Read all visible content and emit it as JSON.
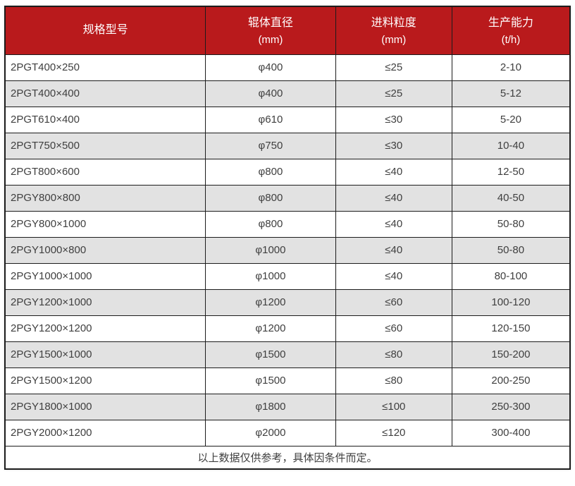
{
  "table": {
    "columns": [
      {
        "label": "规格型号",
        "unit": ""
      },
      {
        "label": "辊体直径",
        "unit": "(mm)"
      },
      {
        "label": "进料粒度",
        "unit": "(mm)"
      },
      {
        "label": "生产能力",
        "unit": "(t/h)"
      }
    ],
    "rows": [
      [
        "2PGT400×250",
        "φ400",
        "≤25",
        "2-10"
      ],
      [
        "2PGT400×400",
        "φ400",
        "≤25",
        "5-12"
      ],
      [
        "2PGT610×400",
        "φ610",
        "≤30",
        "5-20"
      ],
      [
        "2PGT750×500",
        "φ750",
        "≤30",
        "10-40"
      ],
      [
        "2PGT800×600",
        "φ800",
        "≤40",
        "12-50"
      ],
      [
        "2PGY800×800",
        "φ800",
        "≤40",
        "40-50"
      ],
      [
        "2PGY800×1000",
        "φ800",
        "≤40",
        "50-80"
      ],
      [
        "2PGY1000×800",
        "φ1000",
        "≤40",
        "50-80"
      ],
      [
        "2PGY1000×1000",
        "φ1000",
        "≤40",
        "80-100"
      ],
      [
        "2PGY1200×1000",
        "φ1200",
        "≤60",
        "100-120"
      ],
      [
        "2PGY1200×1200",
        "φ1200",
        "≤60",
        "120-150"
      ],
      [
        "2PGY1500×1000",
        "φ1500",
        "≤80",
        "150-200"
      ],
      [
        "2PGY1500×1200",
        "φ1500",
        "≤80",
        "200-250"
      ],
      [
        "2PGY1800×1000",
        "φ1800",
        "≤100",
        "250-300"
      ],
      [
        "2PGY2000×1200",
        "φ2000",
        "≤120",
        "300-400"
      ]
    ],
    "footnote": "以上数据仅供参考，具体因条件而定。"
  },
  "colors": {
    "header_bg": "#b91a1c",
    "header_text": "#ffffff",
    "row_alt_bg": "#e2e2e2",
    "border": "#1c1c1c",
    "body_text": "#3f3f3f"
  }
}
